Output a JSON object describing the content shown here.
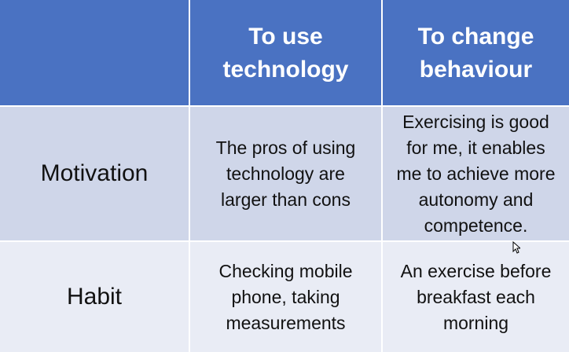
{
  "table": {
    "headers": [
      "",
      "To use\ntechnology",
      "To change\nbehaviour"
    ],
    "rows": [
      {
        "label": "Motivation",
        "cells": [
          "The pros of using\ntechnology are\nlarger than cons",
          "Exercising is good\nfor me, it enables\nme to achieve more\nautonomy and\ncompetence."
        ]
      },
      {
        "label": "Habit",
        "cells": [
          "Checking mobile\nphone, taking\nmeasurements",
          "An exercise before\nbreakfast each\nmorning"
        ]
      }
    ]
  },
  "colors": {
    "header_bg": "#4a72c2",
    "row_1_bg": "#cfd6e9",
    "row_2_bg": "#e9ecf5"
  },
  "icons": {
    "pointer": "mouse-pointer-icon"
  }
}
